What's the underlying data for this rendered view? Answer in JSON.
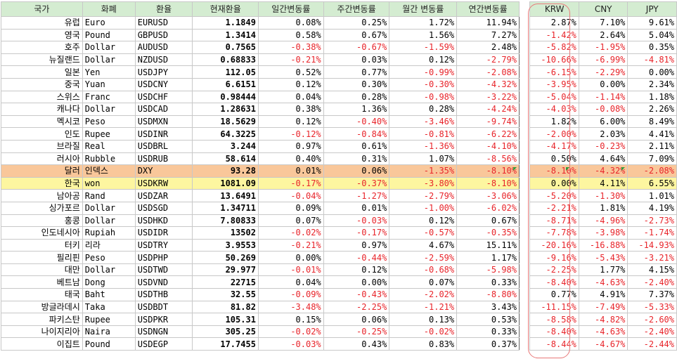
{
  "headers": [
    "국가",
    "화폐",
    "환율",
    "현재환율",
    "일간변동률",
    "주간변동률",
    "월간 변동률",
    "연간변동률",
    "KRW",
    "CNY",
    "JPY"
  ],
  "rows": [
    {
      "country": "유럽",
      "currency": "Euro",
      "code": "EURUSD",
      "rate": "1.1849",
      "daily": "0.08%",
      "weekly": "0.25%",
      "monthly": "1.72%",
      "yearly": "11.94%",
      "krw": "2.87%",
      "cny": "7.10%",
      "jpy": "9.61%"
    },
    {
      "country": "영국",
      "currency": "Pound",
      "code": "GBPUSD",
      "rate": "1.3414",
      "daily": "0.58%",
      "weekly": "0.67%",
      "monthly": "1.56%",
      "yearly": "7.27%",
      "krw": "-1.42%",
      "cny": "2.64%",
      "jpy": "5.04%"
    },
    {
      "country": "호주",
      "currency": "Dollar",
      "code": "AUDUSD",
      "rate": "0.7565",
      "daily": "-0.38%",
      "weekly": "-0.67%",
      "monthly": "-1.59%",
      "yearly": "2.48%",
      "krw": "-5.82%",
      "cny": "-1.95%",
      "jpy": "0.35%"
    },
    {
      "country": "뉴질랜드",
      "currency": "Dollar",
      "code": "NZDUSD",
      "rate": "0.68833",
      "daily": "-0.21%",
      "weekly": "0.03%",
      "monthly": "0.12%",
      "yearly": "-2.79%",
      "krw": "-10.66%",
      "cny": "-6.99%",
      "jpy": "-4.81%"
    },
    {
      "country": "일본",
      "currency": "Yen",
      "code": "USDJPY",
      "rate": "112.05",
      "daily": "0.52%",
      "weekly": "0.77%",
      "monthly": "-0.99%",
      "yearly": "-2.08%",
      "krw": "-6.15%",
      "cny": "-2.29%",
      "jpy": "0.00%"
    },
    {
      "country": "중국",
      "currency": "Yuan",
      "code": "USDCNY",
      "rate": "6.6151",
      "daily": "0.12%",
      "weekly": "0.30%",
      "monthly": "-0.30%",
      "yearly": "-4.32%",
      "krw": "-3.95%",
      "cny": "0.00%",
      "jpy": "2.34%"
    },
    {
      "country": "스위스",
      "currency": "Franc",
      "code": "USDCHF",
      "rate": "0.98444",
      "daily": "0.04%",
      "weekly": "0.28%",
      "monthly": "-0.98%",
      "yearly": "-3.22%",
      "krw": "-5.04%",
      "cny": "-1.14%",
      "jpy": "1.18%"
    },
    {
      "country": "캐나다",
      "currency": "Dollar",
      "code": "USDCAD",
      "rate": "1.28631",
      "daily": "0.38%",
      "weekly": "1.36%",
      "monthly": "0.28%",
      "yearly": "-4.24%",
      "krw": "-4.03%",
      "cny": "-0.08%",
      "jpy": "2.26%"
    },
    {
      "country": "멕시코",
      "currency": "Peso",
      "code": "USDMXN",
      "rate": "18.5629",
      "daily": "0.12%",
      "weekly": "-0.40%",
      "monthly": "-3.46%",
      "yearly": "-9.74%",
      "krw": "1.82%",
      "cny": "6.00%",
      "jpy": "8.49%"
    },
    {
      "country": "인도",
      "currency": "Rupee",
      "code": "USDINR",
      "rate": "64.3225",
      "daily": "-0.12%",
      "weekly": "-0.84%",
      "monthly": "-0.81%",
      "yearly": "-6.22%",
      "krw": "-2.00%",
      "cny": "2.03%",
      "jpy": "4.41%"
    },
    {
      "country": "브라질",
      "currency": "Real",
      "code": "USDBRL",
      "rate": "3.244",
      "daily": "0.97%",
      "weekly": "0.61%",
      "monthly": "-1.36%",
      "yearly": "-4.10%",
      "krw": "-4.17%",
      "cny": "-0.23%",
      "jpy": "2.11%"
    },
    {
      "country": "러시아",
      "currency": "Rubble",
      "code": "USDRUB",
      "rate": "58.614",
      "daily": "0.40%",
      "weekly": "0.31%",
      "monthly": "1.07%",
      "yearly": "-8.56%",
      "krw": "0.50%",
      "cny": "4.64%",
      "jpy": "7.09%"
    },
    {
      "country": "달러",
      "currency": "인덱스",
      "code": "DXY",
      "rate": "93.28",
      "daily": "0.01%",
      "weekly": "0.06%",
      "monthly": "-1.35%",
      "yearly": "-8.10%",
      "krw": "-8.10%",
      "cny": "-4.32%",
      "jpy": "-2.08%",
      "highlight": "orange"
    },
    {
      "country": "한국",
      "currency": "won",
      "code": "USDKRW",
      "rate": "1081.09",
      "daily": "-0.17%",
      "weekly": "-0.37%",
      "monthly": "-3.80%",
      "yearly": "-8.10%",
      "krw": "0.00%",
      "cny": "4.11%",
      "jpy": "6.55%",
      "highlight": "yellow"
    },
    {
      "country": "남아공",
      "currency": "Rand",
      "code": "USDZAR",
      "rate": "13.6491",
      "daily": "-0.04%",
      "weekly": "-1.27%",
      "monthly": "-2.79%",
      "yearly": "-3.06%",
      "krw": "-5.20%",
      "cny": "-1.30%",
      "jpy": "1.01%"
    },
    {
      "country": "싱가포르",
      "currency": "Dollar",
      "code": "USDSGD",
      "rate": "1.34711",
      "daily": "0.09%",
      "weekly": "0.01%",
      "monthly": "-1.00%",
      "yearly": "-6.02%",
      "krw": "-2.21%",
      "cny": "1.81%",
      "jpy": "4.19%"
    },
    {
      "country": "홍콩",
      "currency": "Dollar",
      "code": "USDHKD",
      "rate": "7.80833",
      "daily": "0.07%",
      "weekly": "-0.03%",
      "monthly": "0.12%",
      "yearly": "0.67%",
      "krw": "-8.71%",
      "cny": "-4.96%",
      "jpy": "-2.73%"
    },
    {
      "country": "인도네시아",
      "currency": "Rupiah",
      "code": "USDIDR",
      "rate": "13502",
      "daily": "-0.02%",
      "weekly": "-0.17%",
      "monthly": "-0.57%",
      "yearly": "-0.35%",
      "krw": "-7.78%",
      "cny": "-3.98%",
      "jpy": "-1.74%"
    },
    {
      "country": "터키",
      "currency": "리라",
      "code": "USDTRY",
      "rate": "3.9553",
      "daily": "-0.21%",
      "weekly": "0.97%",
      "monthly": "4.67%",
      "yearly": "15.11%",
      "krw": "-20.16%",
      "cny": "-16.88%",
      "jpy": "-14.93%"
    },
    {
      "country": "필리핀",
      "currency": "Peso",
      "code": "USDPHP",
      "rate": "50.269",
      "daily": "0.00%",
      "weekly": "-0.44%",
      "monthly": "-2.59%",
      "yearly": "1.17%",
      "krw": "-9.16%",
      "cny": "-5.43%",
      "jpy": "-3.21%"
    },
    {
      "country": "대만",
      "currency": "Dollar",
      "code": "USDTWD",
      "rate": "29.977",
      "daily": "-0.01%",
      "weekly": "0.12%",
      "monthly": "-0.68%",
      "yearly": "-5.98%",
      "krw": "-2.25%",
      "cny": "1.77%",
      "jpy": "4.15%"
    },
    {
      "country": "베트남",
      "currency": "Dong",
      "code": "USDVND",
      "rate": "22715",
      "daily": "0.04%",
      "weekly": "0.00%",
      "monthly": "0.07%",
      "yearly": "0.33%",
      "krw": "-8.40%",
      "cny": "-4.63%",
      "jpy": "-2.40%"
    },
    {
      "country": "태국",
      "currency": "Baht",
      "code": "USDTHB",
      "rate": "32.55",
      "daily": "-0.09%",
      "weekly": "-0.43%",
      "monthly": "-2.02%",
      "yearly": "-8.80%",
      "krw": "0.77%",
      "cny": "4.91%",
      "jpy": "7.37%"
    },
    {
      "country": "방글라데시",
      "currency": "Taka",
      "code": "USDBDT",
      "rate": "81.82",
      "daily": "-3.48%",
      "weekly": "-2.25%",
      "monthly": "-1.21%",
      "yearly": "3.43%",
      "krw": "-11.15%",
      "cny": "-7.49%",
      "jpy": "-5.33%"
    },
    {
      "country": "파키스탄",
      "currency": "Rupee",
      "code": "USDPKR",
      "rate": "105.31",
      "daily": "0.15%",
      "weekly": "0.06%",
      "monthly": "0.13%",
      "yearly": "0.53%",
      "krw": "-8.58%",
      "cny": "-4.82%",
      "jpy": "-2.60%"
    },
    {
      "country": "나이지리아",
      "currency": "Naira",
      "code": "USDNGN",
      "rate": "305.25",
      "daily": "-0.02%",
      "weekly": "-0.25%",
      "monthly": "-0.02%",
      "yearly": "0.33%",
      "krw": "-8.40%",
      "cny": "-4.63%",
      "jpy": "-2.40%"
    },
    {
      "country": "이집트",
      "currency": "Pound",
      "code": "USDEGP",
      "rate": "17.7455",
      "daily": "-0.03%",
      "weekly": "0.43%",
      "monthly": "0.83%",
      "yearly": "0.37%",
      "krw": "-8.44%",
      "cny": "-4.67%",
      "jpy": "-2.44%"
    }
  ],
  "colors": {
    "header_bg": "#d4ecd1",
    "negative": "#e8242a",
    "highlight_orange": "#f9c79a",
    "highlight_yellow": "#fdf6a0",
    "krw_marker": "#e87a7a"
  }
}
